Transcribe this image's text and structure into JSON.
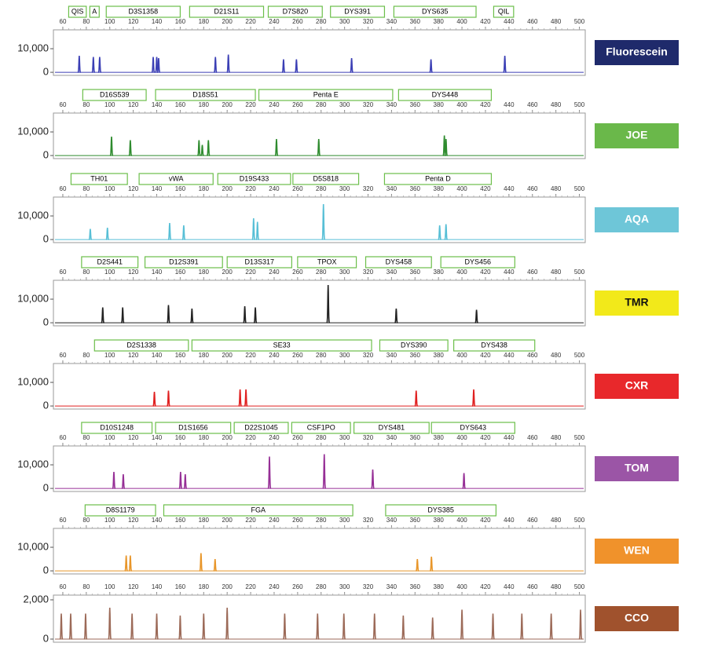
{
  "chart_data": [
    {
      "type": "electropherogram",
      "dye": "Fluorescein",
      "dye_color": "#1f2a6b",
      "dye_text_color": "#ffffff",
      "color": "#3b3fb5",
      "locus_color": "#6cbf4a",
      "loci": [
        {
          "name": "QIS",
          "start": 65,
          "end": 80
        },
        {
          "name": "A",
          "start": 83,
          "end": 91
        },
        {
          "name": "D3S1358",
          "start": 97,
          "end": 160
        },
        {
          "name": "D21S11",
          "start": 168,
          "end": 231
        },
        {
          "name": "D7S820",
          "start": 235,
          "end": 281
        },
        {
          "name": "DYS391",
          "start": 288,
          "end": 334
        },
        {
          "name": "DYS635",
          "start": 342,
          "end": 412
        },
        {
          "name": "QIL",
          "start": 427,
          "end": 444
        }
      ],
      "x": [
        74,
        86,
        91.4,
        137,
        140,
        141.6,
        190,
        201,
        248,
        259,
        306,
        373.6,
        436.5
      ],
      "values": [
        7000,
        6500,
        6500,
        6500,
        6500,
        6000,
        6500,
        7500,
        5500,
        5500,
        6000,
        5500,
        7000
      ],
      "xlim": [
        52,
        505
      ],
      "xticks": [
        60,
        80,
        100,
        120,
        140,
        160,
        180,
        200,
        220,
        240,
        260,
        280,
        300,
        320,
        340,
        360,
        380,
        400,
        420,
        440,
        460,
        480,
        500
      ],
      "ylim": [
        -1300,
        18000
      ],
      "yticks": [
        0,
        {
          "value": 10000,
          "label": "10,000"
        }
      ]
    },
    {
      "type": "electropherogram",
      "dye": "JOE",
      "dye_color": "#6ab84a",
      "dye_text_color": "#ffffff",
      "color": "#2e8b2e",
      "locus_color": "#6cbf4a",
      "loci": [
        {
          "name": "D16S539",
          "start": 77,
          "end": 131
        },
        {
          "name": "D18S51",
          "start": 139,
          "end": 224
        },
        {
          "name": "Penta E",
          "start": 227,
          "end": 341
        },
        {
          "name": "DYS448",
          "start": 346,
          "end": 425
        }
      ],
      "x": [
        101.5,
        117.5,
        176,
        178.8,
        184,
        242,
        278,
        385,
        386.4
      ],
      "values": [
        8000,
        6500,
        6500,
        4500,
        6500,
        7000,
        7000,
        8500,
        7000
      ],
      "xlim": [
        52,
        505
      ],
      "xticks": [
        60,
        80,
        100,
        120,
        140,
        160,
        180,
        200,
        220,
        240,
        260,
        280,
        300,
        320,
        340,
        360,
        380,
        400,
        420,
        440,
        460,
        480,
        500
      ],
      "ylim": [
        -1300,
        18000
      ],
      "yticks": [
        0,
        {
          "value": 10000,
          "label": "10,000"
        }
      ]
    },
    {
      "type": "electropherogram",
      "dye": "AQA",
      "dye_color": "#6ec6d8",
      "dye_text_color": "#ffffff",
      "color": "#57bfd6",
      "locus_color": "#6cbf4a",
      "loci": [
        {
          "name": "TH01",
          "start": 67,
          "end": 115
        },
        {
          "name": "vWA",
          "start": 125,
          "end": 188
        },
        {
          "name": "D19S433",
          "start": 192,
          "end": 254
        },
        {
          "name": "D5S818",
          "start": 256,
          "end": 312
        },
        {
          "name": "Penta D",
          "start": 334,
          "end": 425
        }
      ],
      "x": [
        83.4,
        98,
        151,
        163,
        222.5,
        225.8,
        282,
        381,
        386.4
      ],
      "values": [
        4500,
        5000,
        7000,
        6000,
        9000,
        7500,
        15000,
        6000,
        6500
      ],
      "xlim": [
        52,
        505
      ],
      "xticks": [
        60,
        80,
        100,
        120,
        140,
        160,
        180,
        200,
        220,
        240,
        260,
        280,
        300,
        320,
        340,
        360,
        380,
        400,
        420,
        440,
        460,
        480,
        500
      ],
      "ylim": [
        -1300,
        18000
      ],
      "yticks": [
        0,
        {
          "value": 10000,
          "label": "10,000"
        }
      ]
    },
    {
      "type": "electropherogram",
      "dye": "TMR",
      "dye_color": "#f2e91a",
      "dye_text_color": "#111111",
      "color": "#222222",
      "locus_color": "#6cbf4a",
      "loci": [
        {
          "name": "D2S441",
          "start": 76,
          "end": 124
        },
        {
          "name": "D12S391",
          "start": 130,
          "end": 196
        },
        {
          "name": "D13S317",
          "start": 200,
          "end": 255
        },
        {
          "name": "TPOX",
          "start": 260,
          "end": 310
        },
        {
          "name": "DYS458",
          "start": 318,
          "end": 374
        },
        {
          "name": "DYS456",
          "start": 382,
          "end": 445
        }
      ],
      "x": [
        94,
        111,
        150,
        170,
        215,
        224,
        286,
        344,
        412.4
      ],
      "values": [
        6500,
        6500,
        7500,
        6000,
        7000,
        6500,
        16000,
        6000,
        5500
      ],
      "xlim": [
        52,
        505
      ],
      "xticks": [
        60,
        80,
        100,
        120,
        140,
        160,
        180,
        200,
        220,
        240,
        260,
        280,
        300,
        320,
        340,
        360,
        380,
        400,
        420,
        440,
        460,
        480,
        500
      ],
      "ylim": [
        -1300,
        18000
      ],
      "yticks": [
        0,
        {
          "value": 10000,
          "label": "10,000"
        }
      ]
    },
    {
      "type": "electropherogram",
      "dye": "CXR",
      "dye_color": "#e8282b",
      "dye_text_color": "#ffffff",
      "color": "#e02020",
      "locus_color": "#6cbf4a",
      "loci": [
        {
          "name": "D2S1338",
          "start": 87,
          "end": 167
        },
        {
          "name": "SE33",
          "start": 170,
          "end": 323
        },
        {
          "name": "DYS390",
          "start": 330,
          "end": 388
        },
        {
          "name": "DYS438",
          "start": 393,
          "end": 462
        }
      ],
      "x": [
        138,
        150,
        211,
        216,
        361,
        410
      ],
      "values": [
        6000,
        6500,
        7000,
        7000,
        6500,
        7000
      ],
      "xlim": [
        52,
        505
      ],
      "xticks": [
        60,
        80,
        100,
        120,
        140,
        160,
        180,
        200,
        220,
        240,
        260,
        280,
        300,
        320,
        340,
        360,
        380,
        400,
        420,
        440,
        460,
        480,
        500
      ],
      "ylim": [
        -1300,
        18000
      ],
      "yticks": [
        0,
        {
          "value": 10000,
          "label": "10,000"
        }
      ]
    },
    {
      "type": "electropherogram",
      "dye": "TOM",
      "dye_color": "#9b55a6",
      "dye_text_color": "#ffffff",
      "color": "#962f96",
      "locus_color": "#6cbf4a",
      "loci": [
        {
          "name": "D10S1248",
          "start": 76,
          "end": 136
        },
        {
          "name": "D1S1656",
          "start": 139,
          "end": 203
        },
        {
          "name": "D22S1045",
          "start": 206,
          "end": 252
        },
        {
          "name": "CSF1PO",
          "start": 255,
          "end": 305
        },
        {
          "name": "DYS481",
          "start": 308,
          "end": 372
        },
        {
          "name": "DYS643",
          "start": 374,
          "end": 445
        }
      ],
      "x": [
        103.5,
        111.5,
        160.3,
        164.3,
        236,
        282.7,
        324,
        401.7
      ],
      "values": [
        7000,
        6000,
        7000,
        6000,
        13500,
        14500,
        8000,
        6500
      ],
      "xlim": [
        52,
        505
      ],
      "xticks": [
        60,
        80,
        100,
        120,
        140,
        160,
        180,
        200,
        220,
        240,
        260,
        280,
        300,
        320,
        340,
        360,
        380,
        400,
        420,
        440,
        460,
        480,
        500
      ],
      "ylim": [
        -1300,
        18000
      ],
      "yticks": [
        0,
        {
          "value": 10000,
          "label": "10,000"
        }
      ]
    },
    {
      "type": "electropherogram",
      "dye": "WEN",
      "dye_color": "#f0922b",
      "dye_text_color": "#ffffff",
      "color": "#e8962a",
      "locus_color": "#6cbf4a",
      "loci": [
        {
          "name": "D8S1179",
          "start": 79,
          "end": 139
        },
        {
          "name": "FGA",
          "start": 146,
          "end": 307
        },
        {
          "name": "DYS385",
          "start": 335,
          "end": 429
        }
      ],
      "x": [
        114,
        117.5,
        177.7,
        189.7,
        362,
        374
      ],
      "values": [
        6500,
        6500,
        7500,
        5000,
        5000,
        6000
      ],
      "xlim": [
        52,
        505
      ],
      "xticks": [
        60,
        80,
        100,
        120,
        140,
        160,
        180,
        200,
        220,
        240,
        260,
        280,
        300,
        320,
        340,
        360,
        380,
        400,
        420,
        440,
        460,
        480,
        500
      ],
      "ylim": [
        -1300,
        18000
      ],
      "yticks": [
        0,
        {
          "value": 10000,
          "label": "10,000"
        }
      ]
    },
    {
      "type": "electropherogram",
      "dye": "CCO",
      "dye_color": "#a0522d",
      "dye_text_color": "#ffffff",
      "color": "#9c6a58",
      "locus_color": "#6cbf4a",
      "loci": [],
      "x": [
        58.7,
        66.7,
        79.4,
        100,
        119,
        140,
        160,
        180,
        200,
        249,
        277,
        299.4,
        325.5,
        350,
        375,
        400,
        426.4,
        451,
        476,
        501
      ],
      "values": [
        1300,
        1300,
        1300,
        1600,
        1300,
        1300,
        1200,
        1300,
        1600,
        1300,
        1300,
        1300,
        1300,
        1200,
        1100,
        1500,
        1300,
        1300,
        1300,
        1500
      ],
      "xlim": [
        52,
        505
      ],
      "xticks": [
        60,
        80,
        100,
        120,
        140,
        160,
        180,
        200,
        220,
        240,
        260,
        280,
        300,
        320,
        340,
        360,
        380,
        400,
        420,
        440,
        460,
        480,
        500
      ],
      "ylim": [
        -160,
        2240
      ],
      "yticks": [
        0,
        {
          "value": 2000,
          "label": "2,000"
        }
      ]
    }
  ]
}
